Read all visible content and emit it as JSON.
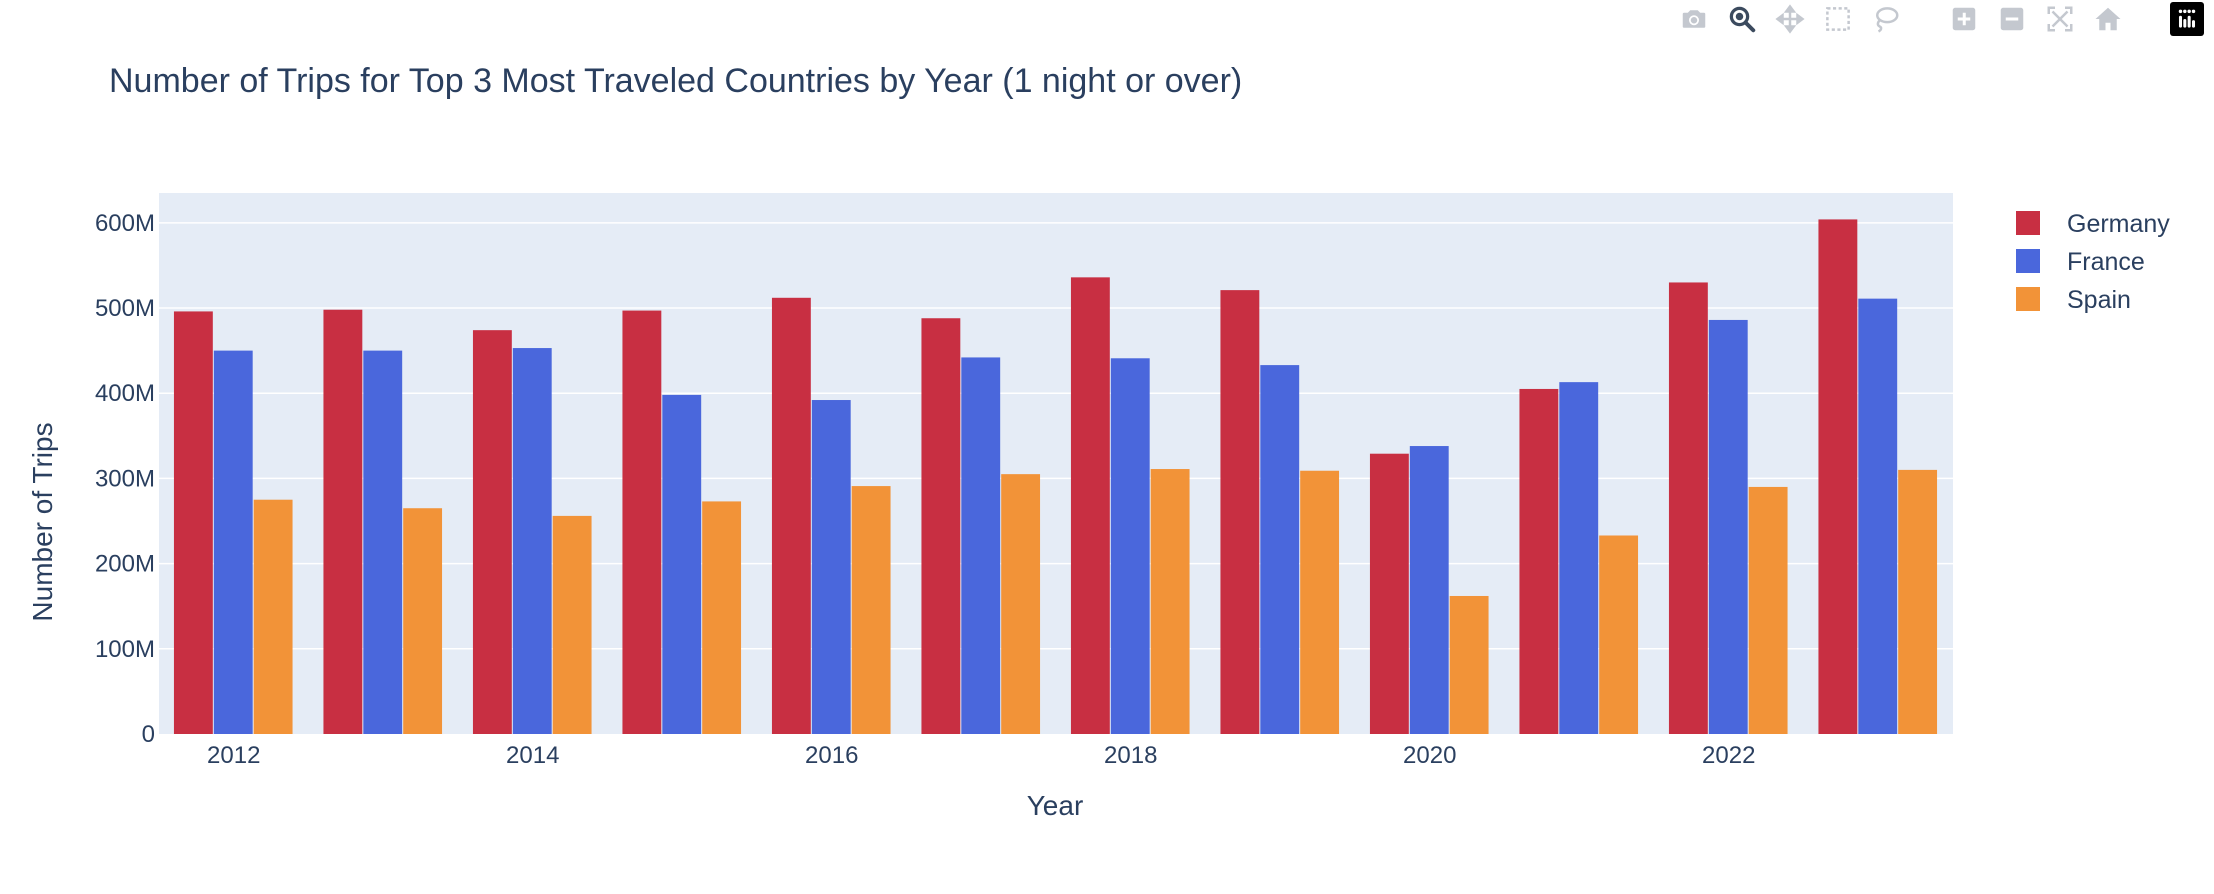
{
  "toolbar": {
    "buttons": [
      {
        "name": "download-plot-button",
        "icon": "camera-icon"
      },
      {
        "name": "zoom-button",
        "icon": "zoom-icon",
        "active": true
      },
      {
        "name": "pan-button",
        "icon": "pan-icon"
      },
      {
        "name": "box-select-button",
        "icon": "box-select-icon"
      },
      {
        "name": "lasso-select-button",
        "icon": "lasso-icon"
      },
      {
        "name": "zoom-in-button",
        "icon": "plus-icon"
      },
      {
        "name": "zoom-out-button",
        "icon": "minus-icon"
      },
      {
        "name": "autoscale-button",
        "icon": "autoscale-icon"
      },
      {
        "name": "reset-axes-button",
        "icon": "home-icon"
      }
    ],
    "logo_icon": "plotly-logo-icon"
  },
  "colors": {
    "plot_bg": "#e5ecf6",
    "grid": "#ffffff",
    "text": "#2a3f5f",
    "modebar_icon": "#c4c8cf",
    "modebar_active": "#3b4a5e"
  },
  "chart_data": {
    "type": "bar",
    "title": "Number of Trips for Top 3 Most Traveled Countries by Year (1 night or over)",
    "xlabel": "Year",
    "ylabel": "Number of Trips",
    "categories": [
      2012,
      2013,
      2014,
      2015,
      2016,
      2017,
      2018,
      2019,
      2020,
      2021,
      2022,
      2023
    ],
    "x_tick_labels": [
      "2012",
      "2014",
      "2016",
      "2018",
      "2020",
      "2022"
    ],
    "y_ticks": [
      0,
      100000000,
      200000000,
      300000000,
      400000000,
      500000000,
      600000000
    ],
    "y_tick_labels": [
      "0",
      "100M",
      "200M",
      "300M",
      "400M",
      "500M",
      "600M"
    ],
    "ylim": [
      0,
      635000000
    ],
    "grid": true,
    "legend_position": "top-right",
    "series": [
      {
        "name": "Germany",
        "color": "#c82f42",
        "values": [
          496000000,
          498000000,
          474000000,
          497000000,
          512000000,
          488000000,
          536000000,
          521000000,
          329000000,
          405000000,
          530000000,
          604000000
        ]
      },
      {
        "name": "France",
        "color": "#4a67dc",
        "values": [
          450000000,
          450000000,
          453000000,
          398000000,
          392000000,
          442000000,
          441000000,
          433000000,
          338000000,
          413000000,
          486000000,
          511000000
        ]
      },
      {
        "name": "Spain",
        "color": "#f29338",
        "values": [
          275000000,
          265000000,
          256000000,
          273000000,
          291000000,
          305000000,
          311000000,
          309000000,
          162000000,
          233000000,
          290000000,
          310000000
        ]
      }
    ]
  }
}
